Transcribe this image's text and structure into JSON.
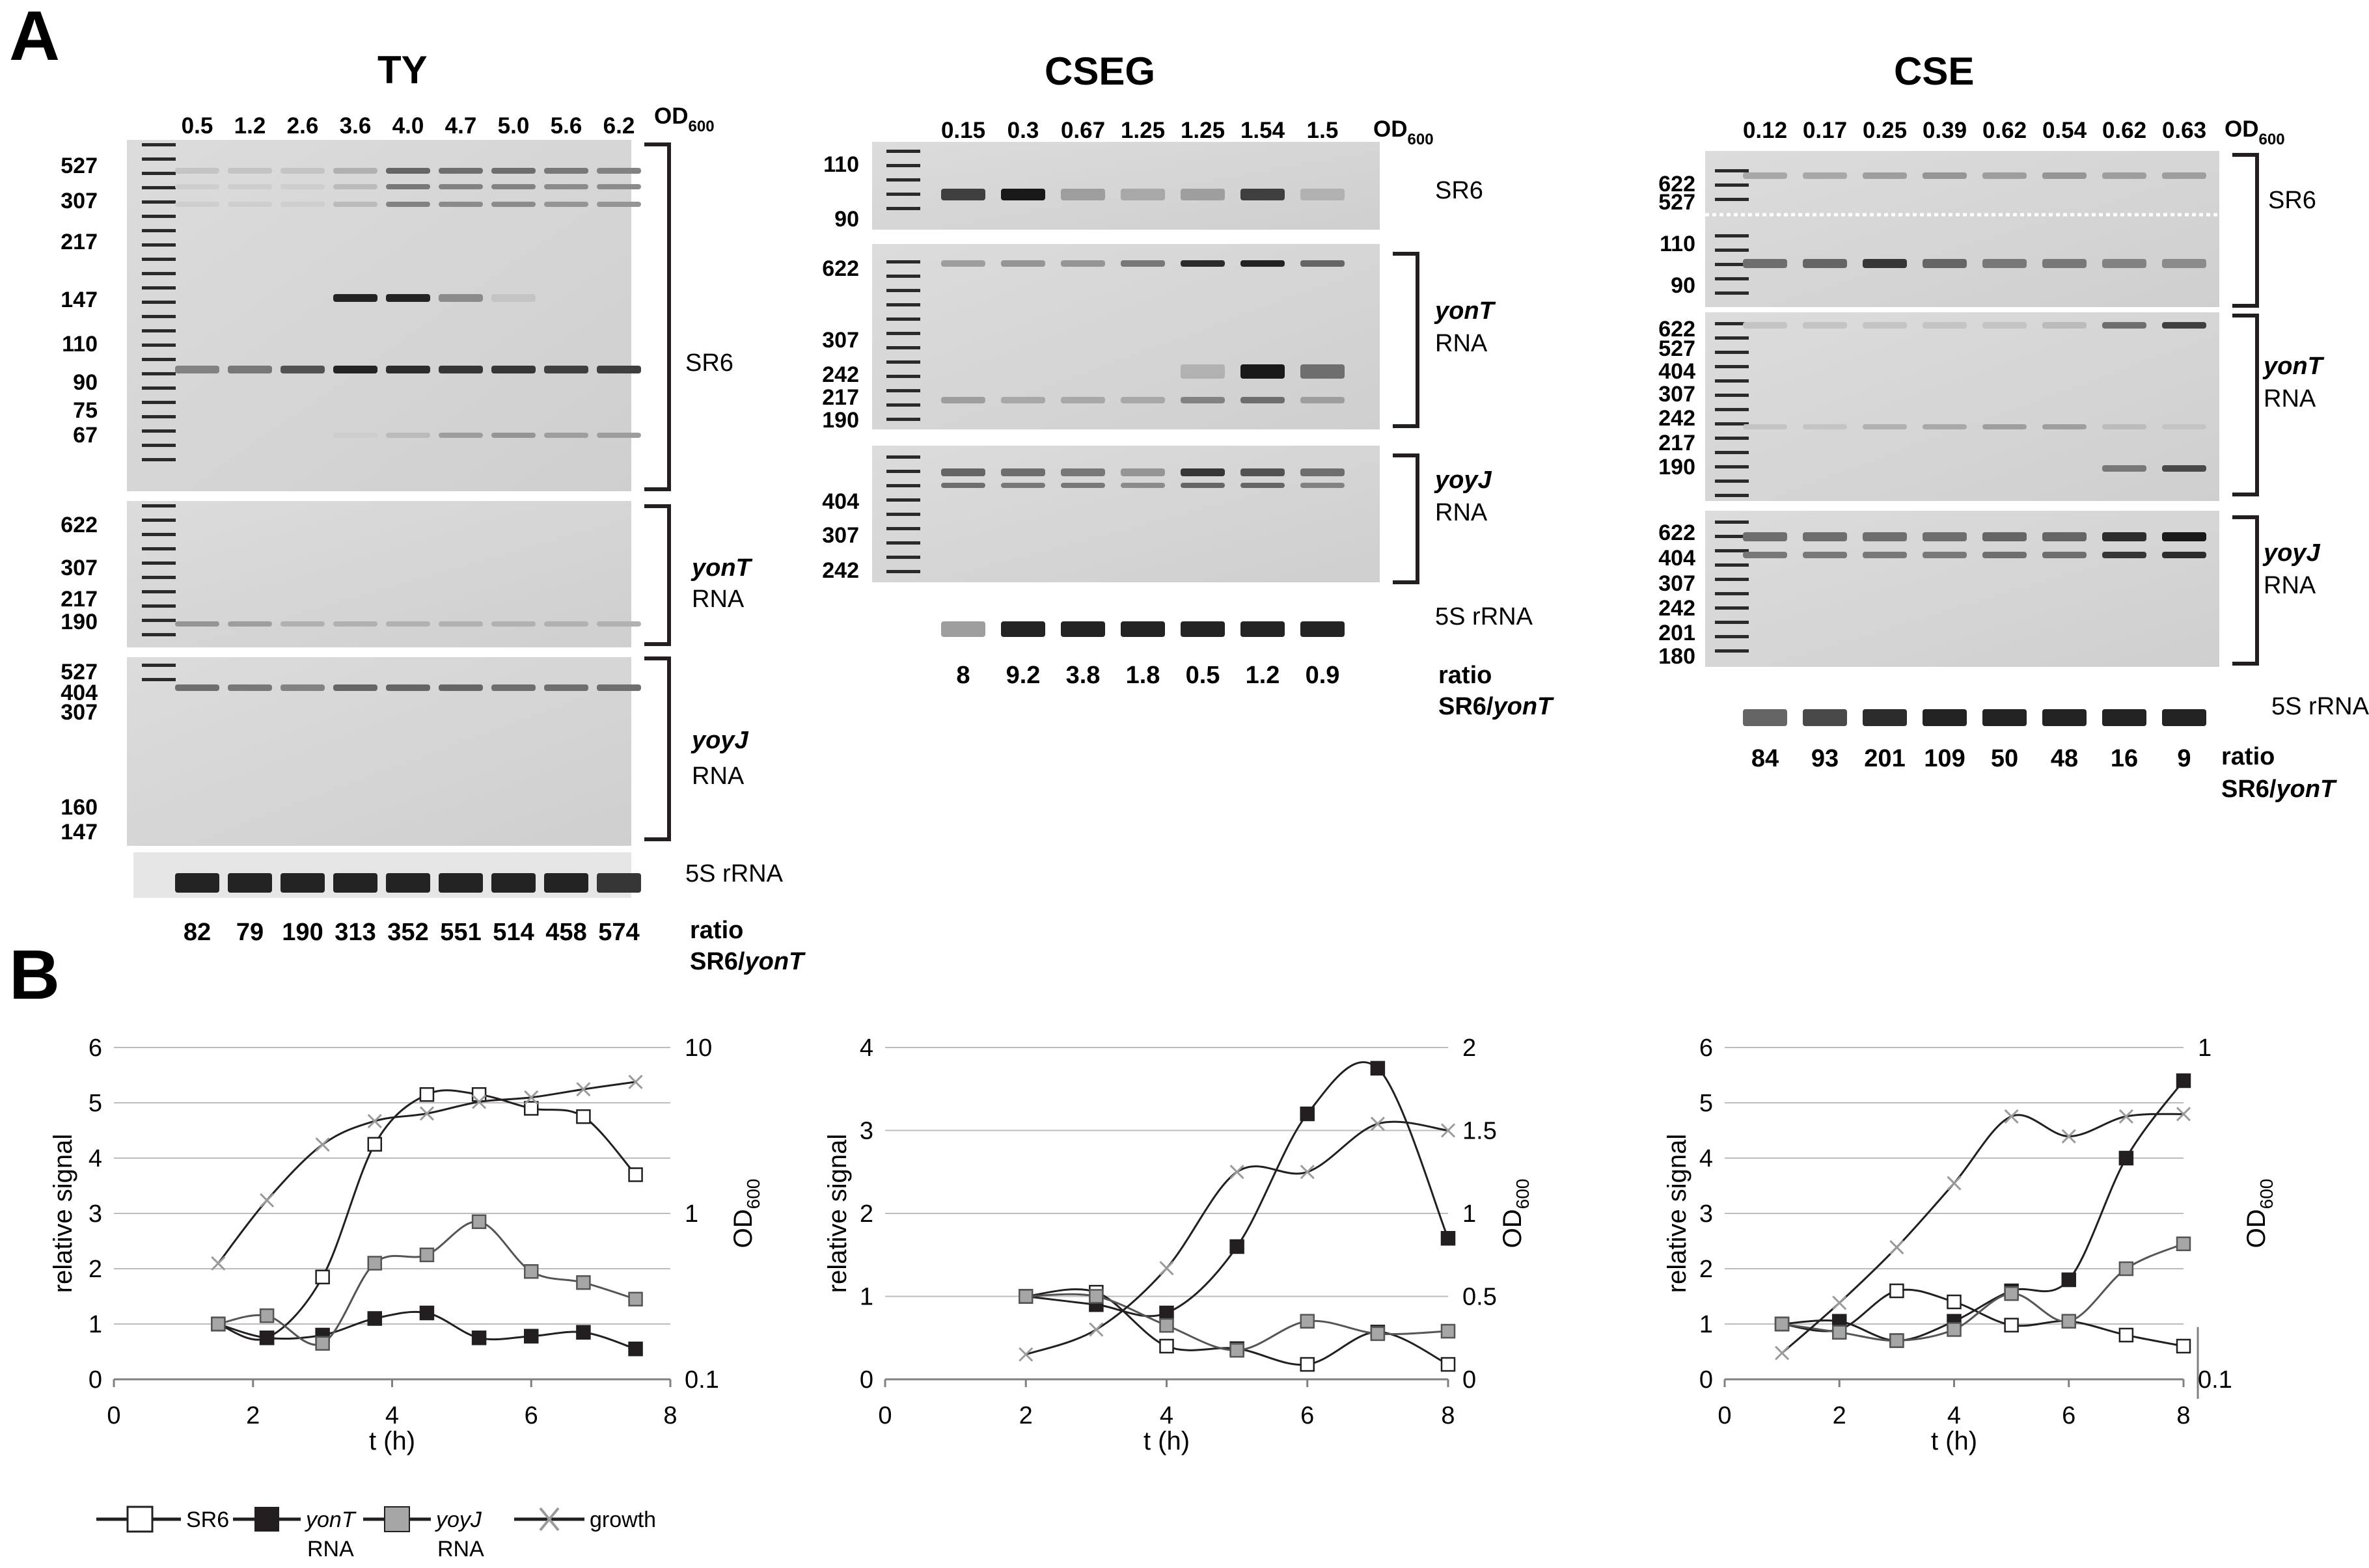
{
  "panel_a": {
    "label": "A",
    "od_label": "OD",
    "od_sub": "600",
    "ty": {
      "title": "TY",
      "od_values": [
        "0.5",
        "1.2",
        "2.6",
        "3.6",
        "4.0",
        "4.7",
        "5.0",
        "5.6",
        "6.2"
      ],
      "sr6_markers": [
        "527",
        "307",
        "217",
        "147",
        "110",
        "90",
        "75",
        "67"
      ],
      "yont_markers": [
        "622",
        "307",
        "217",
        "190"
      ],
      "yoyj_markers": [
        "527",
        "404",
        "307",
        "160",
        "147"
      ],
      "ratios": [
        "82",
        "79",
        "190",
        "313",
        "352",
        "551",
        "514",
        "458",
        "574"
      ]
    },
    "cseg": {
      "title": "CSEG",
      "od_values": [
        "0.15",
        "0.3",
        "0.67",
        "1.25",
        "1.25",
        "1.54",
        "1.5"
      ],
      "sr6_markers": [
        "110",
        "90"
      ],
      "yont_markers": [
        "622",
        "307",
        "242",
        "217",
        "190"
      ],
      "yoyj_markers": [
        "404",
        "307",
        "242"
      ],
      "ratios": [
        "8",
        "9.2",
        "3.8",
        "1.8",
        "0.5",
        "1.2",
        "0.9"
      ]
    },
    "cse": {
      "title": "CSE",
      "od_values": [
        "0.12",
        "0.17",
        "0.25",
        "0.39",
        "0.62",
        "0.54",
        "0.62",
        "0.63"
      ],
      "sr6_markers": [
        "622",
        "527",
        "110",
        "90"
      ],
      "yont_markers": [
        "622",
        "527",
        "404",
        "307",
        "242",
        "217",
        "190"
      ],
      "yoyj_markers": [
        "622",
        "404",
        "307",
        "242",
        "201",
        "180"
      ],
      "ratios": [
        "84",
        "93",
        "201",
        "109",
        "50",
        "48",
        "16",
        "9"
      ]
    },
    "band_labels": {
      "sr6": "SR6",
      "yont_name": "yonT",
      "yoyj_name": "yoyJ",
      "rna": "RNA",
      "rrna": "5S rRNA",
      "ratio_line1": "ratio",
      "ratio_prefix": "SR6/",
      "ratio_gene": "yonT"
    }
  },
  "panel_b": {
    "label": "B",
    "y_label": "relative signal",
    "y2_label": "OD",
    "y2_sub": "600",
    "x_label": "t (h)",
    "legend": {
      "sr6": "SR6",
      "yont_name": "yonT",
      "yont_rna": "RNA",
      "yoyj_name": "yoyJ",
      "yoyj_rna": "RNA",
      "growth": "growth"
    }
  },
  "colors": {
    "ink": "#231f20",
    "grid": "#bdbdbd",
    "gray_marker": "#a6a6a6",
    "open_marker": "#ffffff"
  },
  "chart_data": [
    {
      "type": "line",
      "medium": "TY",
      "xlabel": "t (h)",
      "ylabel": "relative signal",
      "y2label": "OD600",
      "xlim": [
        0,
        8
      ],
      "ylim": [
        0,
        6
      ],
      "y2lim": [
        0.1,
        10
      ],
      "y2scale": "log",
      "x_ticks": [
        "0",
        "2",
        "4",
        "6",
        "8"
      ],
      "y_ticks": [
        "0",
        "1",
        "2",
        "3",
        "4",
        "5",
        "6"
      ],
      "y2_ticks": [
        "0.1",
        "1",
        "10"
      ],
      "series": [
        {
          "name": "SR6",
          "x": [
            1.5,
            2.2,
            3.0,
            3.75,
            4.5,
            5.25,
            6.0,
            6.75,
            7.5
          ],
          "y": [
            1.0,
            0.75,
            1.85,
            4.25,
            5.15,
            5.15,
            4.9,
            4.75,
            3.7
          ]
        },
        {
          "name": "yonT RNA",
          "x": [
            1.5,
            2.2,
            3.0,
            3.75,
            4.5,
            5.25,
            6.0,
            6.75,
            7.5
          ],
          "y": [
            1.0,
            0.75,
            0.8,
            1.1,
            1.2,
            0.75,
            0.78,
            0.85,
            0.55
          ]
        },
        {
          "name": "yoyJ RNA",
          "x": [
            1.5,
            2.2,
            3.0,
            3.75,
            4.5,
            5.25,
            6.0,
            6.75,
            7.5
          ],
          "y": [
            1.0,
            1.15,
            0.65,
            2.1,
            2.25,
            2.85,
            1.95,
            1.75,
            1.45
          ]
        },
        {
          "name": "growth",
          "axis": "y2",
          "x": [
            1.5,
            2.2,
            3.0,
            3.75,
            4.5,
            5.25,
            6.0,
            6.75,
            7.5
          ],
          "y": [
            0.5,
            1.2,
            2.6,
            3.6,
            4.0,
            4.7,
            5.0,
            5.6,
            6.2
          ]
        }
      ]
    },
    {
      "type": "line",
      "medium": "CSEG",
      "xlabel": "t (h)",
      "ylabel": "relative signal",
      "y2label": "OD600",
      "xlim": [
        0,
        8
      ],
      "ylim": [
        0,
        4
      ],
      "y2lim": [
        0,
        2
      ],
      "x_ticks": [
        "0",
        "2",
        "4",
        "6",
        "8"
      ],
      "y_ticks": [
        "0",
        "1",
        "2",
        "3",
        "4"
      ],
      "y2_ticks": [
        "0",
        "0.5",
        "1",
        "1.5",
        "2"
      ],
      "series": [
        {
          "name": "SR6",
          "x": [
            2,
            3,
            4,
            5,
            6,
            7,
            8
          ],
          "y": [
            1.0,
            1.05,
            0.4,
            0.37,
            0.18,
            0.57,
            0.18
          ]
        },
        {
          "name": "yonT RNA",
          "x": [
            2,
            3,
            4,
            5,
            6,
            7,
            8
          ],
          "y": [
            1.0,
            0.9,
            0.8,
            1.6,
            3.2,
            3.75,
            1.7
          ]
        },
        {
          "name": "yoyJ RNA",
          "x": [
            2,
            3,
            4,
            5,
            6,
            7,
            8
          ],
          "y": [
            1.0,
            1.0,
            0.65,
            0.35,
            0.7,
            0.55,
            0.58
          ]
        },
        {
          "name": "growth",
          "axis": "y2",
          "x": [
            2,
            3,
            4,
            5,
            6,
            7,
            8
          ],
          "y": [
            0.15,
            0.3,
            0.67,
            1.25,
            1.25,
            1.54,
            1.5
          ]
        }
      ]
    },
    {
      "type": "line",
      "medium": "CSE",
      "xlabel": "t (h)",
      "ylabel": "relative signal",
      "y2label": "OD600",
      "xlim": [
        0,
        8
      ],
      "ylim": [
        0,
        6
      ],
      "y2lim": [
        0.1,
        1
      ],
      "y2scale": "log",
      "x_ticks": [
        "0",
        "2",
        "4",
        "6",
        "8"
      ],
      "y_ticks": [
        "0",
        "1",
        "2",
        "3",
        "4",
        "5",
        "6"
      ],
      "y2_ticks": [
        "0.1",
        "1"
      ],
      "series": [
        {
          "name": "SR6",
          "x": [
            1,
            2,
            3,
            4,
            5,
            6,
            7,
            8
          ],
          "y": [
            1.0,
            0.9,
            1.6,
            1.4,
            0.98,
            1.05,
            0.8,
            0.6
          ]
        },
        {
          "name": "yonT RNA",
          "x": [
            1,
            2,
            3,
            4,
            5,
            6,
            7,
            8
          ],
          "y": [
            1.0,
            1.05,
            0.7,
            1.05,
            1.6,
            1.8,
            4.0,
            5.4
          ]
        },
        {
          "name": "yoyJ RNA",
          "x": [
            1,
            2,
            3,
            4,
            5,
            6,
            7,
            8
          ],
          "y": [
            1.0,
            0.85,
            0.7,
            0.9,
            1.55,
            1.05,
            2.0,
            2.45
          ]
        },
        {
          "name": "growth",
          "axis": "y2",
          "x": [
            1,
            2,
            3,
            4,
            5,
            6,
            7,
            8
          ],
          "y": [
            0.12,
            0.17,
            0.25,
            0.39,
            0.62,
            0.54,
            0.62,
            0.63
          ]
        }
      ]
    }
  ]
}
